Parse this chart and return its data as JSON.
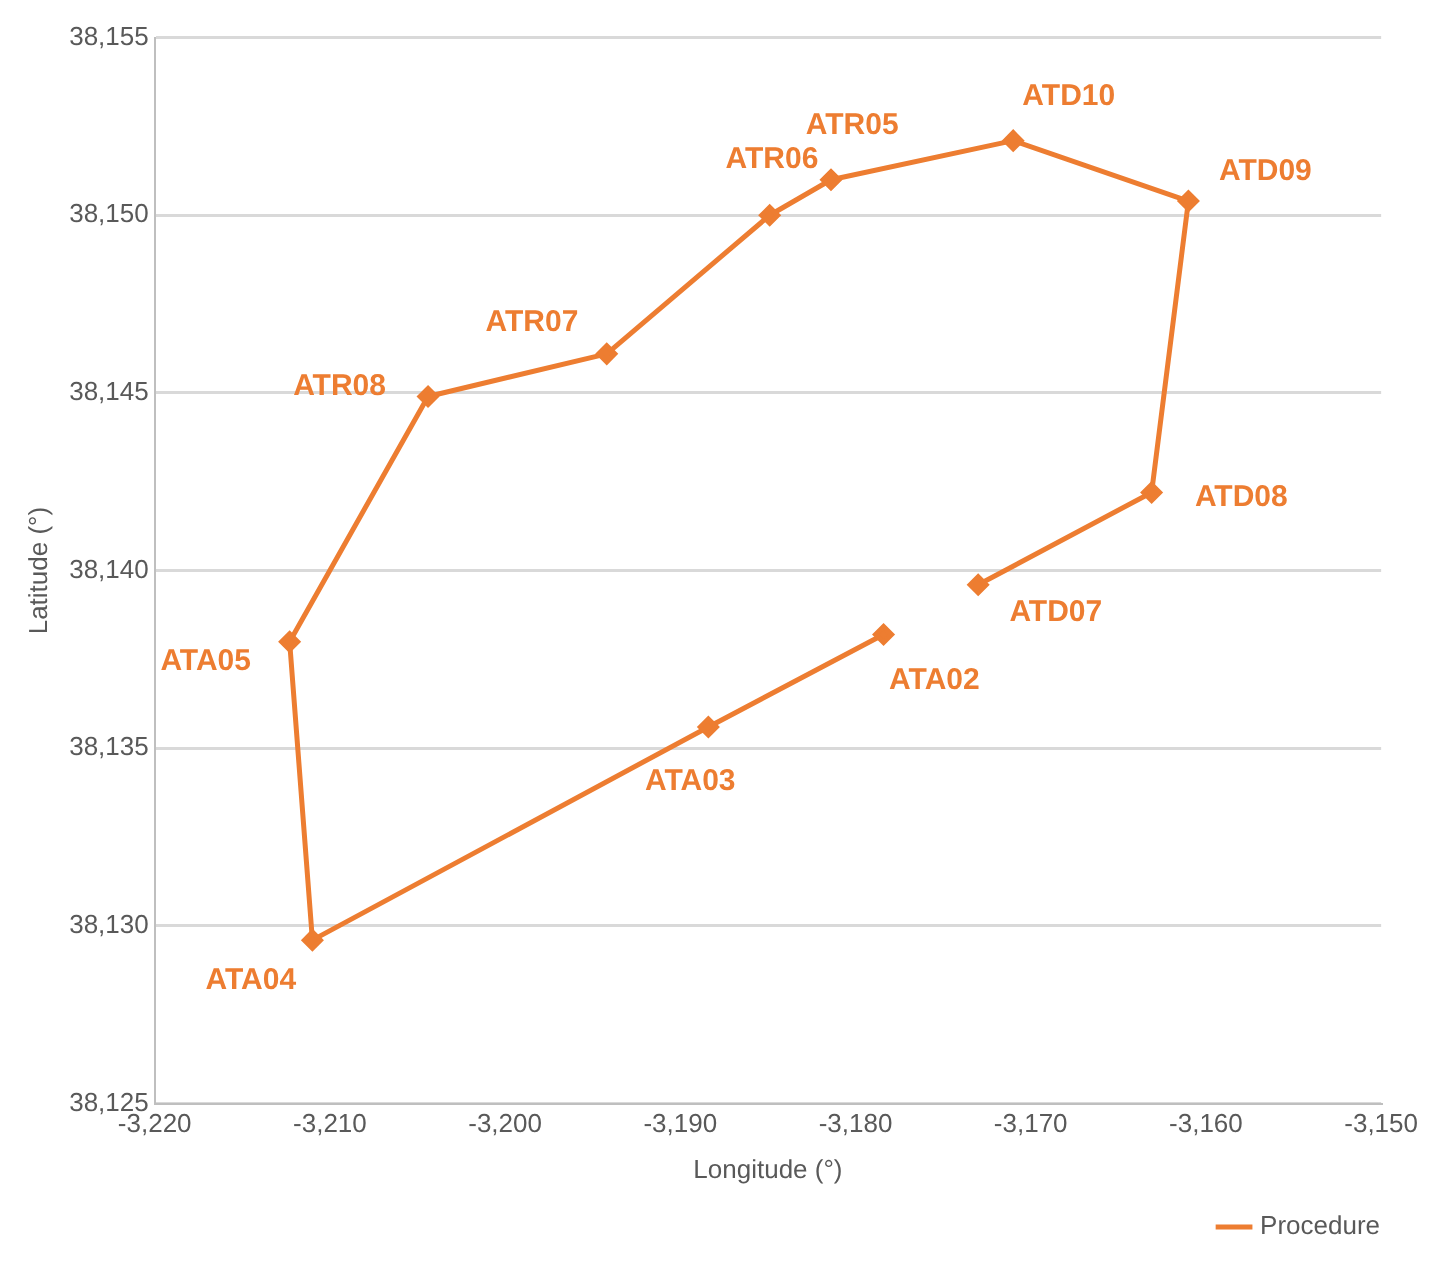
{
  "chart_data": {
    "type": "line",
    "xlabel": "Longitude (°)",
    "ylabel": "Latitude (°)",
    "series": [
      {
        "name": "Procedure",
        "color": "#ed7d31",
        "x": [
          -3173.0,
          -3163.1,
          -3161.0,
          -3171.0,
          -3181.4,
          -3184.9,
          -3194.2,
          -3204.4,
          -3212.3,
          -3211.0,
          -3188.4,
          -3178.4
        ],
        "values": [
          38139.6,
          38142.2,
          38150.4,
          38152.1,
          38151.0,
          38150.0,
          38146.1,
          38144.9,
          38138.0,
          38129.6,
          38135.6,
          38138.2
        ]
      }
    ],
    "xlim": [
      -3220,
      -3150
    ],
    "xticks": [
      {
        "value": -3220,
        "label": "-3,220"
      },
      {
        "value": -3210,
        "label": "-3,210"
      },
      {
        "value": -3200,
        "label": "-3,200"
      },
      {
        "value": -3190,
        "label": "-3,190"
      },
      {
        "value": -3180,
        "label": "-3,180"
      },
      {
        "value": -3170,
        "label": "-3,170"
      },
      {
        "value": -3160,
        "label": "-3,160"
      },
      {
        "value": -3150,
        "label": "-3,150"
      }
    ],
    "ylim": [
      38125,
      38155
    ],
    "yticks": [
      {
        "value": 38125,
        "label": "38,125"
      },
      {
        "value": 38130,
        "label": "38,130"
      },
      {
        "value": 38135,
        "label": "38,135"
      },
      {
        "value": 38140,
        "label": "38,140"
      },
      {
        "value": 38145,
        "label": "38,145"
      },
      {
        "value": 38150,
        "label": "38,150"
      },
      {
        "value": 38155,
        "label": "38,155"
      }
    ],
    "grid": "y",
    "legend": "bottom right",
    "marker": "diamond",
    "line_style": "solid",
    "annotations": [
      {
        "text": "ATD07",
        "x": -3173.0,
        "y": 38139.6
      },
      {
        "text": "ATD08",
        "x": -3163.1,
        "y": 38142.2
      },
      {
        "text": "ATD09",
        "x": -3161.0,
        "y": 38150.4
      },
      {
        "text": "ATD10",
        "x": -3171.0,
        "y": 38152.1
      },
      {
        "text": "ATR05",
        "x": -3181.4,
        "y": 38151.0
      },
      {
        "text": "ATR06",
        "x": -3184.9,
        "y": 38150.0
      },
      {
        "text": "ATR07",
        "x": -3194.2,
        "y": 38146.1
      },
      {
        "text": "ATR08",
        "x": -3204.4,
        "y": 38144.9
      },
      {
        "text": "ATA05",
        "x": -3212.3,
        "y": 38138.0
      },
      {
        "text": "ATA04",
        "x": -3211.0,
        "y": 38129.6
      },
      {
        "text": "ATA03",
        "x": -3188.4,
        "y": 38135.6
      },
      {
        "text": "ATA02",
        "x": -3178.4,
        "y": 38138.2
      }
    ]
  }
}
